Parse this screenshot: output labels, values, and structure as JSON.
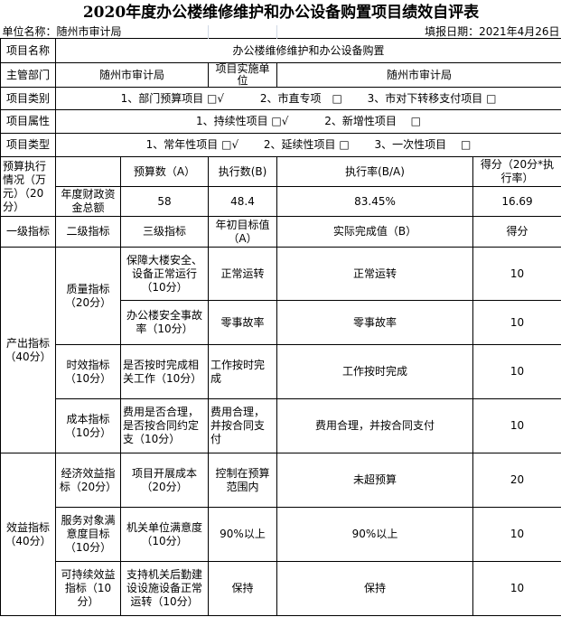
{
  "title": "2020年度办公楼维修维护和办公设备购置项目绩效自评表",
  "unit_label": "单位名称：随州市审计局",
  "fill_date": "填报日期：2021年4月26日",
  "project_name": {
    "label": "项目名称",
    "value": "办公楼维修维护和办公设备购置"
  },
  "department": {
    "label": "主管部门",
    "value": "随州市审计局",
    "impl_label": "项目实施单位",
    "impl_value": "随州市审计局"
  },
  "category": {
    "label": "项目类别",
    "options": [
      "1、部门预算项目 □√",
      "2、市直专项　□",
      "3、市对下转移支付项目 □"
    ]
  },
  "attribute": {
    "label": "项目属性",
    "options": [
      "1、持续性项目 □√",
      "2、新增性项目　 □"
    ]
  },
  "type": {
    "label": "项目类型",
    "options": [
      "1、常年性项目 □√",
      "2、延续性项目 □",
      "3、一次性项目　 □"
    ]
  },
  "budget": {
    "label": "预算执行情况（万元）（20分）",
    "headers": [
      "预算数（A）",
      "执行数(B)",
      "执行率(B/A)",
      "得分（20分*执行率）"
    ],
    "row_label": "年度财政资金总额",
    "values": [
      "58",
      "48.4",
      "83.45%",
      "16.69"
    ]
  },
  "indicator_headers": [
    "一级指标",
    "二级指标",
    "三级指标",
    "年初目标值（A）",
    "实际完成值（B）",
    "得分"
  ],
  "groups": [
    {
      "level1": "产出指标（40分）",
      "subs": [
        {
          "level2": "质量指标（20分）",
          "items": [
            {
              "level3": "保障大楼安全、设备正常运行（10分）",
              "target": "正常运转",
              "actual": "正常运转",
              "score": "10"
            },
            {
              "level3": "办公楼安全事故率（10分）",
              "target": "零事故率",
              "actual": "零事故率",
              "score": "10"
            }
          ]
        },
        {
          "level2": "时效指标（10分）",
          "items": [
            {
              "level3": "是否按时完成相关工作（10分）",
              "target": "工作按时完成",
              "actual": "工作按时完成",
              "score": "10"
            }
          ]
        },
        {
          "level2": "成本指标（10分）",
          "items": [
            {
              "level3": "费用是否合理，是否按合同约定支（10分）",
              "target": "费用合理，并按合同支付",
              "actual": "费用合理，并按合同支付",
              "score": "10"
            }
          ]
        }
      ]
    },
    {
      "level1": "效益指标（40分）",
      "subs": [
        {
          "level2": "经济效益指标（20分）",
          "items": [
            {
              "level3": "项目开展成本（20分）",
              "target": "控制在预算范围内",
              "actual": "未超预算",
              "score": "20"
            }
          ]
        },
        {
          "level2": "服务对象满意度目标（10分）",
          "items": [
            {
              "level3": "机关单位满意度（10分）",
              "target": "90%以上",
              "actual": "90%以上",
              "score": "10"
            }
          ]
        },
        {
          "level2": "可持续效益指标（10分）",
          "items": [
            {
              "level3": "支持机关后勤建设设施设备正常运转（10分）",
              "target": "保持",
              "actual": "保持",
              "score": "10"
            }
          ]
        }
      ]
    }
  ]
}
